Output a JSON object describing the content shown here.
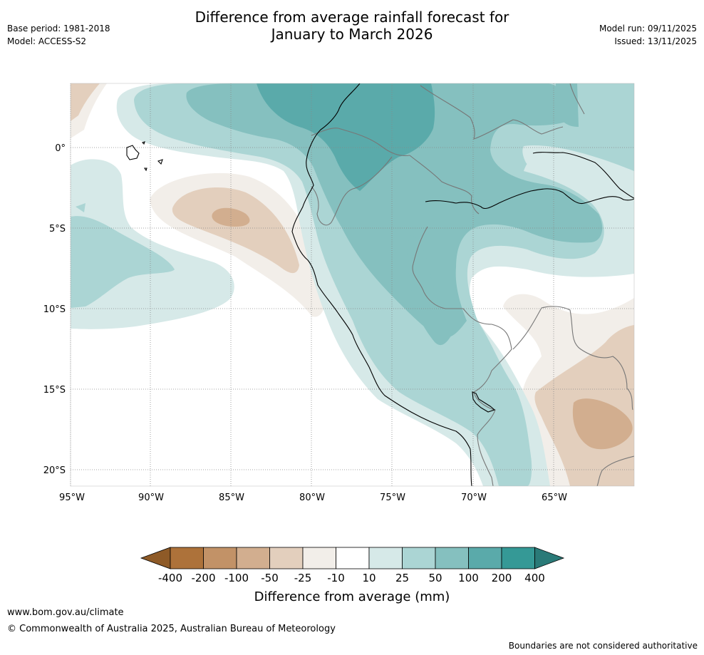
{
  "header": {
    "title_line1": "Difference from average rainfall forecast for",
    "title_line2": "January to March 2026",
    "base_period": "Base period: 1981-2018",
    "model": "Model: ACCESS-S2",
    "model_run": "Model run: 09/11/2025",
    "issued": "Issued: 13/11/2025"
  },
  "map": {
    "region": "north-western South America and adjacent eastern Pacific",
    "lon_range": [
      -95,
      -60
    ],
    "lat_range": [
      -21,
      4
    ],
    "lat_labels": [
      "0°",
      "5°S",
      "10°S",
      "15°S",
      "20°S"
    ],
    "lon_labels": [
      "95°W",
      "90°W",
      "85°W",
      "80°W",
      "75°W",
      "70°W",
      "65°W"
    ]
  },
  "legend": {
    "title": "Difference from average (mm)",
    "ticks": [
      "-400",
      "-200",
      "-100",
      "-50",
      "-25",
      "-10",
      "10",
      "25",
      "50",
      "100",
      "200",
      "400"
    ],
    "colors": {
      "lt-400": "#8e5a27",
      "b-400_-200": "#ad723a",
      "b-200_-100": "#c29267",
      "b-100_-50": "#d2ae8f",
      "b-50_-25": "#e3cfbd",
      "b-25_-10": "#f2eee9",
      "b-10_10": "#ffffff",
      "b10_25": "#d6e9e8",
      "b25_50": "#abd5d4",
      "b50_100": "#85c0bf",
      "b100_200": "#5aaaaa",
      "b200_400": "#359996",
      "gt400": "#2a7a78"
    }
  },
  "footer": {
    "url": "www.bom.gov.au/climate",
    "copyright": "© Commonwealth of Australia 2025, Australian Bureau of Meteorology",
    "disclaimer": "Boundaries are not considered authoritative"
  }
}
